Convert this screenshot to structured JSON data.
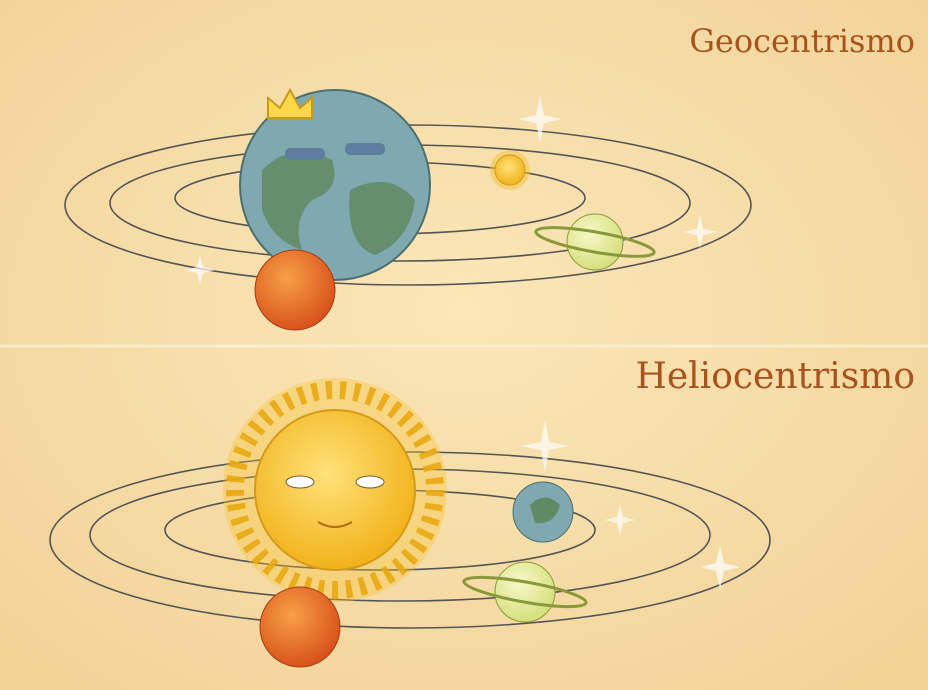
{
  "panels": [
    {
      "title": "Geocentrismo"
    },
    {
      "title": "Heliocentrismo"
    }
  ]
}
